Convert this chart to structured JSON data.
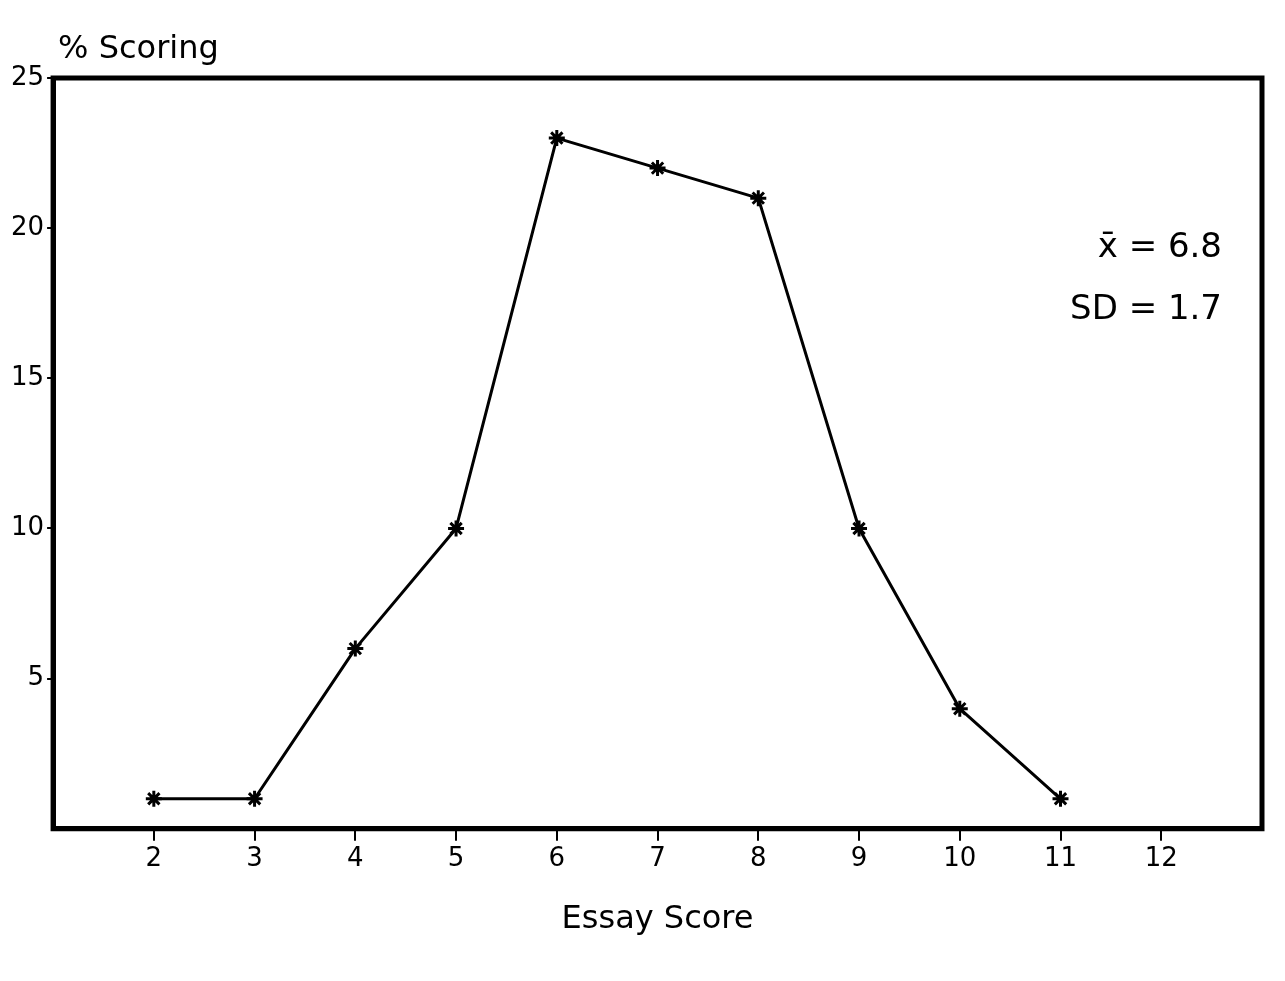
{
  "chart_data": {
    "type": "line",
    "ylabel": "% Scoring",
    "xlabel": "Essay Score",
    "x": [
      2,
      3,
      4,
      5,
      6,
      7,
      8,
      9,
      10,
      11
    ],
    "series": [
      {
        "color": "#000000",
        "values": [
          1,
          1,
          6,
          10,
          23,
          22,
          21,
          10,
          4,
          1
        ]
      }
    ],
    "xlim": [
      1,
      13
    ],
    "xticks": [
      2,
      3,
      4,
      5,
      6,
      7,
      8,
      9,
      10,
      11,
      12
    ],
    "ylim": [
      0,
      25
    ],
    "yticks": [
      5,
      10,
      15,
      20,
      25
    ],
    "annotations": [
      "x̄ = 6.8",
      "SD = 1.7"
    ],
    "marker": "cross",
    "line_style": "solid",
    "grid": false,
    "legend": false
  }
}
